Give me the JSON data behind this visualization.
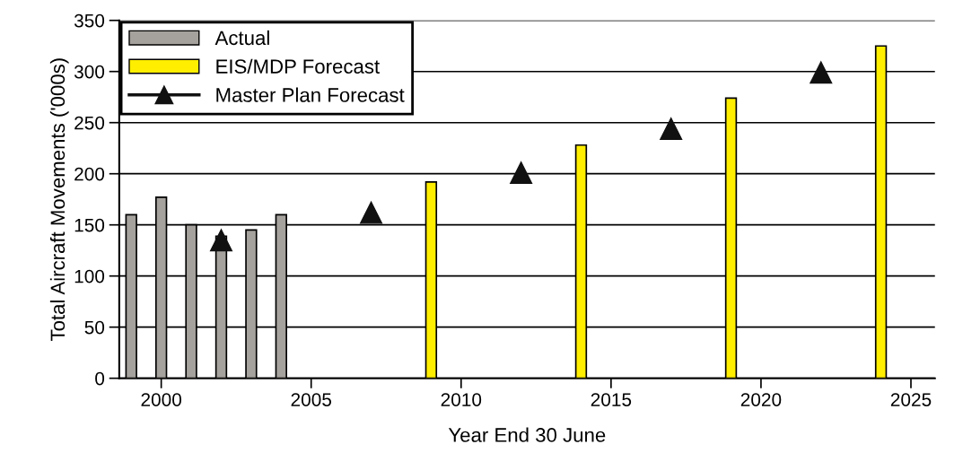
{
  "chart_data": {
    "type": "bar",
    "xlabel": "Year End 30 June",
    "ylabel": "Total Aircraft Movements ('000s)",
    "series": [
      {
        "name": "Actual",
        "color": "#a5a19c",
        "x": [
          1999,
          2000,
          2001,
          2002,
          2003,
          2004
        ],
        "values": [
          160,
          177,
          150,
          139,
          145,
          160
        ]
      },
      {
        "name": "EIS/MDP Forecast",
        "color": "#ffee00",
        "x": [
          2009,
          2014,
          2019,
          2024
        ],
        "values": [
          192,
          228,
          274,
          325
        ]
      },
      {
        "name": "Master Plan Forecast",
        "type": "scatter",
        "color": "#111111",
        "marker": "triangle",
        "x": [
          2002,
          2007,
          2012,
          2017,
          2022
        ],
        "values": [
          135,
          162,
          201,
          244,
          299
        ]
      }
    ],
    "xlim": [
      1998.6,
      2025.8
    ],
    "xticks": [
      2000,
      2005,
      2010,
      2015,
      2020,
      2025
    ],
    "ylim": [
      0,
      350
    ],
    "yticks": [
      0,
      50,
      100,
      150,
      200,
      250,
      300,
      350
    ],
    "grid": "y",
    "legend": "top left"
  }
}
